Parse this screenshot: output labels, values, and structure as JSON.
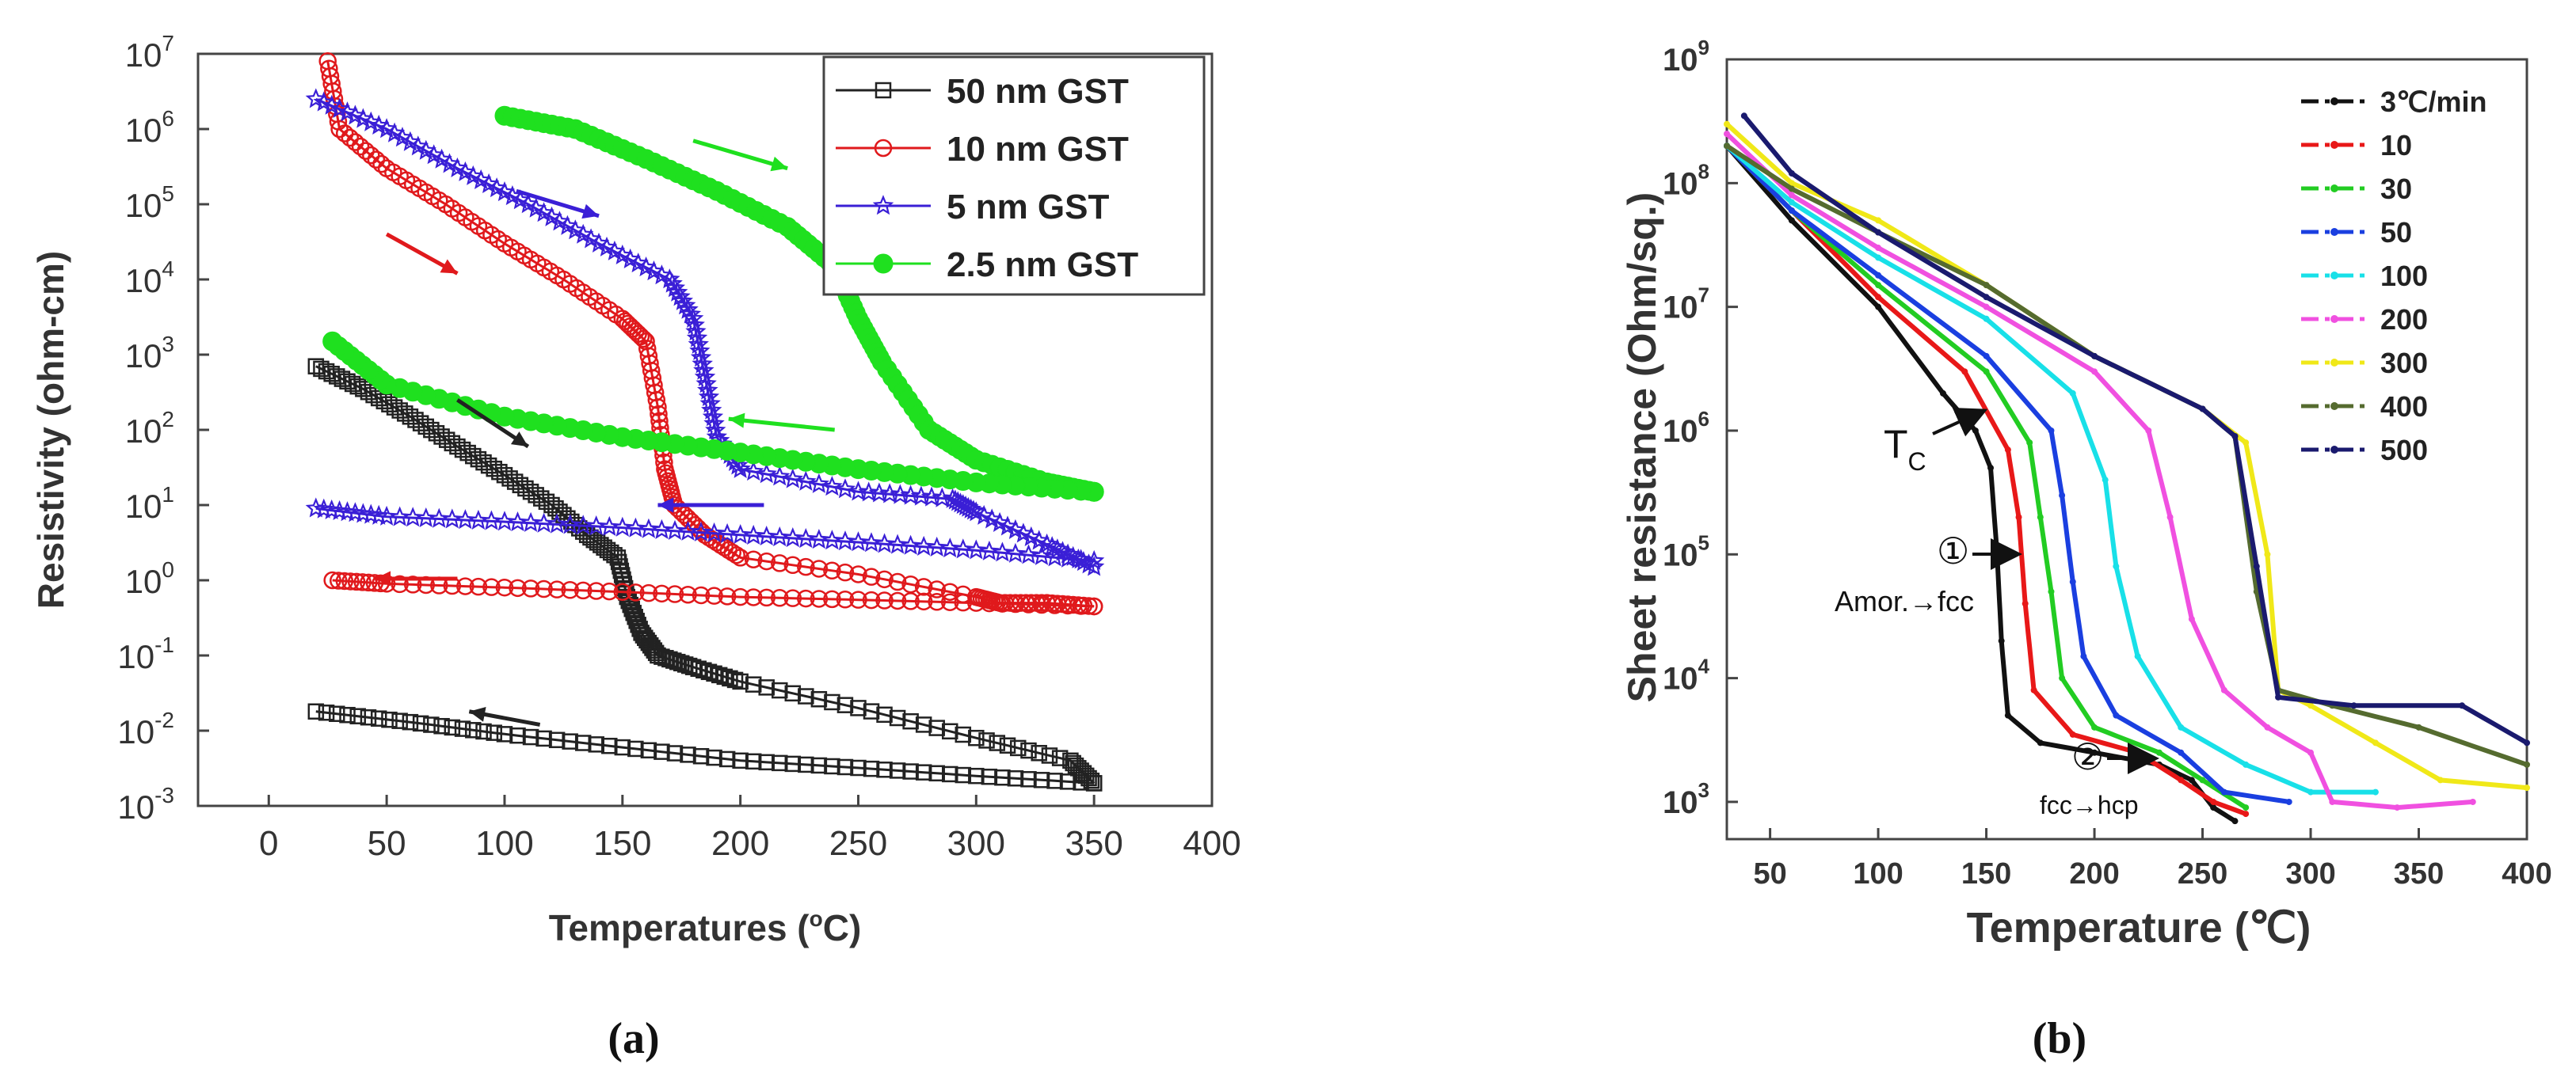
{
  "panels": {
    "a": {
      "caption": "(a)",
      "xlabel": "Temperatures (",
      "xlabel_deg": "o",
      "xlabel_unit": "C)",
      "ylabel": "Resistivity (ohm-cm)",
      "xticks": [
        "0",
        "50",
        "100",
        "150",
        "200",
        "250",
        "300",
        "350",
        "400"
      ],
      "yticks": [
        {
          "base": "10",
          "exp": "-3"
        },
        {
          "base": "10",
          "exp": "-2"
        },
        {
          "base": "10",
          "exp": "-1"
        },
        {
          "base": "10",
          "exp": "0"
        },
        {
          "base": "10",
          "exp": "1"
        },
        {
          "base": "10",
          "exp": "2"
        },
        {
          "base": "10",
          "exp": "3"
        },
        {
          "base": "10",
          "exp": "4"
        },
        {
          "base": "10",
          "exp": "5"
        },
        {
          "base": "10",
          "exp": "6"
        },
        {
          "base": "10",
          "exp": "7"
        }
      ],
      "legend": [
        "50 nm GST",
        "10 nm GST",
        "5 nm GST",
        "2.5 nm GST"
      ]
    },
    "b": {
      "caption": "(b)",
      "xlabel": "Temperature (℃)",
      "ylabel": "Sheet resistance (Ohm/sq.)",
      "xticks": [
        "50",
        "100",
        "150",
        "200",
        "250",
        "300",
        "350",
        "400"
      ],
      "yticks": [
        {
          "base": "10",
          "exp": "3"
        },
        {
          "base": "10",
          "exp": "4"
        },
        {
          "base": "10",
          "exp": "5"
        },
        {
          "base": "10",
          "exp": "6"
        },
        {
          "base": "10",
          "exp": "7"
        },
        {
          "base": "10",
          "exp": "8"
        },
        {
          "base": "10",
          "exp": "9"
        }
      ],
      "legend": [
        "3℃/min",
        "10",
        "30",
        "50",
        "100",
        "200",
        "300",
        "400",
        "500"
      ],
      "annotations": {
        "tc_main": "T",
        "tc_sub": "C",
        "step1": "①",
        "step1_label": "Amor.→fcc",
        "step2": "②",
        "step2_label": "fcc→hcp"
      }
    }
  },
  "chart_data": [
    {
      "type": "scatter",
      "panel": "a",
      "xlabel": "Temperatures (°C)",
      "ylabel": "Resistivity (ohm-cm)",
      "xlim": [
        -30,
        400
      ],
      "ylim": [
        0.001,
        10000000
      ],
      "y_scale": "log",
      "legend_position": "top-right",
      "grid": false,
      "series": [
        {
          "name": "50 nm GST",
          "color": "#222222",
          "marker": "square",
          "heating": {
            "x": [
              20,
              40,
              60,
              80,
              100,
              120,
              135,
              148,
              152,
              158,
              165,
              180,
              200,
              250,
              300,
              340,
              350
            ],
            "y": [
              700,
              350,
              150,
              60,
              25,
              10,
              4,
              2,
              0.6,
              0.2,
              0.1,
              0.07,
              0.045,
              0.02,
              0.008,
              0.004,
              0.002
            ]
          },
          "cooling": {
            "x": [
              350,
              300,
              250,
              200,
              150,
              100,
              60,
              20
            ],
            "y": [
              0.002,
              0.0025,
              0.0032,
              0.004,
              0.006,
              0.009,
              0.013,
              0.018
            ]
          }
        },
        {
          "name": "10 nm GST",
          "color": "#e0191c",
          "marker": "circle",
          "heating": {
            "x": [
              25,
              30,
              50,
              75,
              100,
              125,
              150,
              160,
              165,
              168,
              172,
              185,
              200,
              250,
              300,
              310,
              330,
              350
            ],
            "y": [
              8000000,
              1000000,
              300000,
              100000,
              30000,
              10000,
              3000,
              1500,
              200,
              30,
              10,
              4,
              2,
              1.2,
              0.6,
              0.5,
              0.5,
              0.45
            ]
          },
          "cooling": {
            "x": [
              350,
              300,
              250,
              200,
              150,
              100,
              50,
              27
            ],
            "y": [
              0.45,
              0.5,
              0.55,
              0.6,
              0.7,
              0.8,
              0.9,
              1
            ]
          }
        },
        {
          "name": "5 nm GST",
          "color": "#3a1fd6",
          "marker": "star",
          "heating": {
            "x": [
              20,
              50,
              80,
              110,
              140,
              170,
              180,
              185,
              190,
              200,
              250,
              290,
              300,
              330,
              350
            ],
            "y": [
              2500000,
              1000000,
              300000,
              100000,
              30000,
              10000,
              3000,
              500,
              80,
              30,
              15,
              12,
              8,
              3,
              1.5
            ]
          },
          "cooling": {
            "x": [
              350,
              300,
              250,
              200,
              150,
              100,
              50,
              20
            ],
            "y": [
              1.8,
              2.5,
              3.2,
              4,
              5,
              6,
              7,
              9
            ]
          }
        },
        {
          "name": "2.5 nm GST",
          "color": "#1fe01f",
          "marker": "filled-circle",
          "heating": {
            "x": [
              100,
              130,
              160,
              190,
              220,
              240,
              250,
              260,
              280,
              300,
              330,
              350
            ],
            "y": [
              1500000,
              1000000,
              400000,
              150000,
              50000,
              15000,
              3000,
              800,
              100,
              40,
              20,
              15
            ]
          },
          "cooling": {
            "x": [
              350,
              300,
              250,
              200,
              150,
              100,
              50,
              27
            ],
            "y": [
              15,
              20,
              30,
              50,
              80,
              150,
              400,
              1500
            ]
          }
        }
      ]
    },
    {
      "type": "line",
      "panel": "b",
      "xlabel": "Temperature (℃)",
      "ylabel": "Sheet resistance (Ohm/sq.)",
      "xlim": [
        30,
        400
      ],
      "ylim": [
        500,
        1000000000
      ],
      "y_scale": "log",
      "legend_position": "top-right",
      "grid": false,
      "series": [
        {
          "name": "3℃/min",
          "color": "#111111",
          "x": [
            30,
            60,
            100,
            130,
            145,
            152,
            155,
            157,
            160,
            175,
            200,
            230,
            245,
            255,
            265
          ],
          "y": [
            200000000,
            50000000,
            10000000,
            2000000,
            1000000,
            500000,
            100000,
            20000,
            5000,
            3000,
            2500,
            2000,
            1500,
            900,
            700
          ]
        },
        {
          "name": "10",
          "color": "#e81818",
          "x": [
            30,
            60,
            100,
            140,
            160,
            165,
            168,
            172,
            190,
            220,
            240,
            255,
            270
          ],
          "y": [
            200000000,
            60000000,
            12000000,
            3000000,
            700000,
            200000,
            40000,
            8000,
            3500,
            2500,
            1500,
            1000,
            800
          ]
        },
        {
          "name": "30",
          "color": "#22cc22",
          "x": [
            30,
            60,
            100,
            150,
            170,
            175,
            180,
            185,
            200,
            230,
            250,
            270
          ],
          "y": [
            200000000,
            60000000,
            15000000,
            3000000,
            800000,
            200000,
            50000,
            10000,
            4000,
            2500,
            1500,
            900
          ]
        },
        {
          "name": "50",
          "color": "#1a3fe0",
          "x": [
            30,
            60,
            100,
            150,
            180,
            185,
            190,
            195,
            210,
            240,
            260,
            290
          ],
          "y": [
            200000000,
            60000000,
            18000000,
            4000000,
            1000000,
            300000,
            60000,
            15000,
            5000,
            2500,
            1200,
            1000
          ]
        },
        {
          "name": "100",
          "color": "#18e0e8",
          "x": [
            30,
            60,
            100,
            150,
            190,
            205,
            210,
            220,
            240,
            270,
            300,
            330
          ],
          "y": [
            200000000,
            70000000,
            25000000,
            8000000,
            2000000,
            400000,
            80000,
            15000,
            4000,
            2000,
            1200,
            1200
          ]
        },
        {
          "name": "200",
          "color": "#f050e0",
          "x": [
            30,
            60,
            100,
            150,
            200,
            225,
            235,
            245,
            260,
            280,
            300,
            310,
            340,
            375
          ],
          "y": [
            250000000,
            80000000,
            30000000,
            10000000,
            3000000,
            1000000,
            200000,
            30000,
            8000,
            4000,
            2500,
            1000,
            900,
            1000
          ]
        },
        {
          "name": "300",
          "color": "#f0e818",
          "x": [
            30,
            60,
            100,
            150,
            200,
            250,
            270,
            280,
            285,
            300,
            330,
            360,
            400
          ],
          "y": [
            300000000,
            100000000,
            50000000,
            15000000,
            4000000,
            1500000,
            800000,
            100000,
            8000,
            6000,
            3000,
            1500,
            1300
          ]
        },
        {
          "name": "400",
          "color": "#556b2f",
          "x": [
            30,
            60,
            100,
            150,
            200,
            250,
            265,
            275,
            285,
            310,
            350,
            400
          ],
          "y": [
            200000000,
            90000000,
            40000000,
            15000000,
            4000000,
            1500000,
            900000,
            50000,
            8000,
            6000,
            4000,
            2000
          ]
        },
        {
          "name": "500",
          "color": "#1a1a6e",
          "x": [
            38,
            60,
            100,
            150,
            200,
            250,
            265,
            275,
            285,
            320,
            370,
            400
          ],
          "y": [
            350000000,
            120000000,
            40000000,
            12000000,
            4000000,
            1500000,
            900000,
            80000,
            7000,
            6000,
            6000,
            3000
          ]
        }
      ]
    }
  ]
}
